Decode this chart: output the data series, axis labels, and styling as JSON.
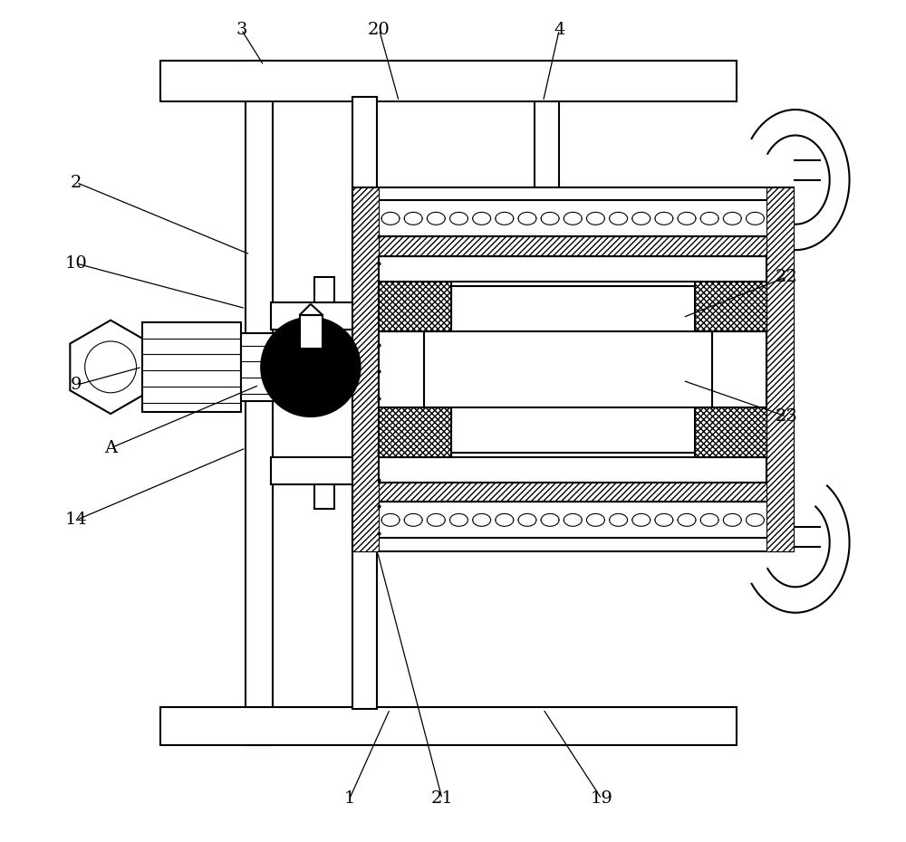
{
  "bg_color": "#ffffff",
  "line_color": "#000000",
  "lw": 1.5,
  "lw_thin": 0.8,
  "fig_width": 10.0,
  "fig_height": 9.3,
  "dpi": 100
}
